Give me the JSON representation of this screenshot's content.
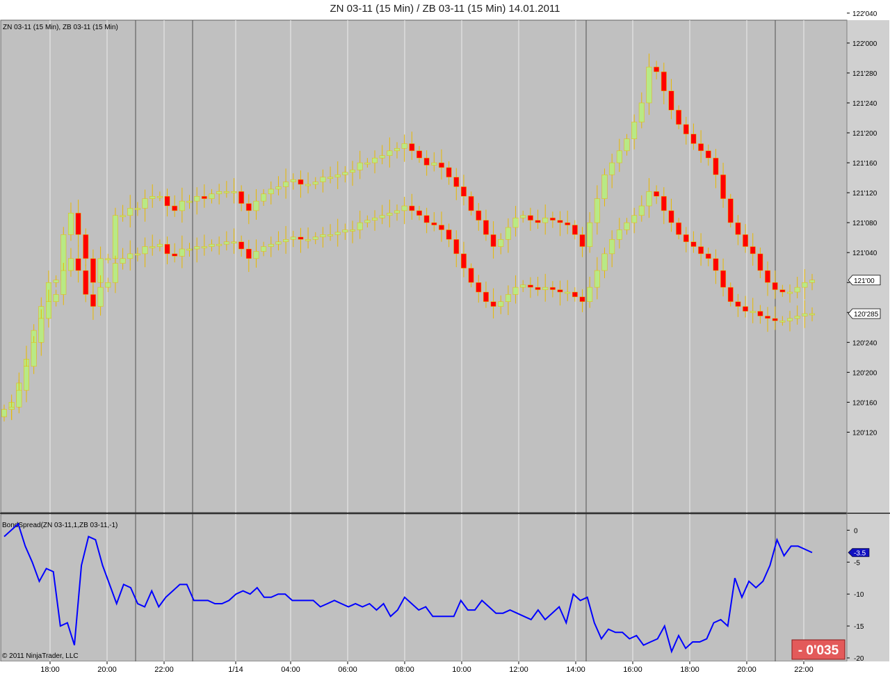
{
  "window_title": "ZN 03-11 (15 Min) / ZB 03-11 (15 Min)  14.01.2011",
  "price_panel_label": "ZN 03-11 (15 Min), ZB 03-11 (15 Min)",
  "indicator_panel_label": "BondSpread(ZN 03-11,1,ZB 03-11,-1)",
  "copyright": "© 2011 NinjaTrader, LLC",
  "spread_box": "- 0'035",
  "colors": {
    "background": "#c0c0c0",
    "up": "#b8e986",
    "down": "#ff0000",
    "wick": "#e8b800",
    "spread_line": "#0000ff",
    "spread_box": "#e35a5a"
  },
  "chart_data": [
    {
      "type": "candlestick",
      "title": "ZN 03-11 (15 Min), ZB 03-11 (15 Min)",
      "ylim": [
        120.08,
        122.02
      ],
      "y_ticks": [
        "122'040",
        "122'000",
        "121'280",
        "121'240",
        "121'200",
        "121'160",
        "121'120",
        "121'080",
        "121'040",
        "121'000",
        "120'280",
        "120'240",
        "120'200",
        "120'160",
        "120'120"
      ],
      "y_tick_values": [
        122.125,
        122.0,
        121.875,
        121.75,
        121.625,
        121.5,
        121.375,
        121.25,
        121.125,
        121.0,
        120.875,
        120.75,
        120.625,
        120.5,
        120.375
      ],
      "last_price_labels": [
        "121'00",
        "120'285"
      ],
      "x_ticks": [
        "18:00",
        "20:00",
        "22:00",
        "1/14",
        "04:00",
        "06:00",
        "08:00",
        "10:00",
        "12:00",
        "14:00",
        "16:00",
        "18:00",
        "20:00",
        "22:00"
      ],
      "series": [
        {
          "name": "ZN 03-11 (15 Min)",
          "close": [
            120.47,
            120.5,
            120.58,
            120.68,
            120.8,
            120.9,
            121.0,
            121.01,
            121.2,
            121.29,
            121.2,
            121.1,
            121.0,
            121.1,
            121.1,
            121.28,
            121.28,
            121.31,
            121.31,
            121.35,
            121.36,
            121.36,
            121.32,
            121.3,
            121.34,
            121.34,
            121.36,
            121.35,
            121.37,
            121.38,
            121.38,
            121.38,
            121.33,
            121.3,
            121.34,
            121.37,
            121.39,
            121.4,
            121.42,
            121.43,
            121.41,
            121.41,
            121.42,
            121.44,
            121.44,
            121.45,
            121.46,
            121.47,
            121.5,
            121.5,
            121.52,
            121.53,
            121.55,
            121.56,
            121.58,
            121.55,
            121.52,
            121.49,
            121.5,
            121.48,
            121.44,
            121.4,
            121.36,
            121.3,
            121.26,
            121.2,
            121.15,
            121.18,
            121.23,
            121.27,
            121.28,
            121.26,
            121.25,
            121.27,
            121.26,
            121.25,
            121.24,
            121.2,
            121.15,
            121.25,
            121.35,
            121.45,
            121.5,
            121.55,
            121.6,
            121.67,
            121.75,
            121.9,
            121.88,
            121.8,
            121.72,
            121.66,
            121.62,
            121.58,
            121.55,
            121.52,
            121.45,
            121.35,
            121.25,
            121.2,
            121.15,
            121.12,
            121.05,
            121.0,
            120.97,
            120.96,
            120.96,
            120.98,
            121.0,
            121.01
          ]
        },
        {
          "name": "ZB 03-11 (15 Min)",
          "close": [
            120.47,
            120.48,
            120.55,
            120.65,
            120.75,
            120.85,
            120.92,
            120.95,
            121.05,
            121.1,
            121.05,
            120.95,
            120.9,
            120.98,
            121.0,
            121.08,
            121.1,
            121.12,
            121.12,
            121.15,
            121.15,
            121.16,
            121.12,
            121.11,
            121.14,
            121.14,
            121.15,
            121.15,
            121.16,
            121.16,
            121.17,
            121.17,
            121.14,
            121.1,
            121.13,
            121.15,
            121.16,
            121.17,
            121.18,
            121.19,
            121.18,
            121.18,
            121.19,
            121.2,
            121.2,
            121.21,
            121.22,
            121.22,
            121.25,
            121.26,
            121.27,
            121.28,
            121.29,
            121.3,
            121.32,
            121.3,
            121.28,
            121.25,
            121.24,
            121.22,
            121.18,
            121.12,
            121.06,
            121.0,
            120.96,
            120.92,
            120.9,
            120.92,
            120.95,
            120.98,
            120.99,
            120.98,
            120.97,
            120.98,
            120.97,
            120.96,
            120.96,
            120.94,
            120.92,
            120.98,
            121.05,
            121.12,
            121.18,
            121.22,
            121.25,
            121.28,
            121.32,
            121.38,
            121.36,
            121.3,
            121.25,
            121.2,
            121.17,
            121.15,
            121.12,
            121.1,
            121.05,
            120.98,
            120.92,
            120.9,
            120.88,
            120.88,
            120.86,
            120.85,
            120.84,
            120.84,
            120.85,
            120.86,
            120.87,
            120.87
          ]
        }
      ]
    },
    {
      "type": "line",
      "title": "BondSpread(ZN 03-11,1,ZB 03-11,-1)",
      "ylim": [
        -20,
        2
      ],
      "y_ticks": [
        0,
        -5,
        -10,
        -15,
        -20
      ],
      "last_value_label": "-3.5",
      "x_ticks": [
        "18:00",
        "20:00",
        "22:00",
        "1/14",
        "04:00",
        "06:00",
        "08:00",
        "10:00",
        "12:00",
        "14:00",
        "16:00",
        "18:00",
        "20:00",
        "22:00"
      ],
      "series": [
        {
          "name": "BondSpread(ZN 03-11,1,ZB 03-11,-1)",
          "values": [
            -1,
            0,
            1,
            -2.5,
            -5,
            -8,
            -6,
            -6.5,
            -15,
            -14.5,
            -18,
            -5.5,
            -1,
            -1.5,
            -5.5,
            -8.5,
            -11.5,
            -8.5,
            -9,
            -11.5,
            -12,
            -9.5,
            -12,
            -10.5,
            -9.5,
            -8.5,
            -8.5,
            -11,
            -11,
            -11,
            -11.5,
            -11.5,
            -11,
            -10,
            -9.5,
            -10,
            -9,
            -10.5,
            -10.5,
            -10,
            -10,
            -11,
            -11,
            -11,
            -11,
            -12,
            -11.5,
            -11,
            -11.5,
            -12,
            -11.5,
            -12,
            -11.5,
            -12.5,
            -11.5,
            -13.5,
            -12.5,
            -10.5,
            -11.5,
            -12.5,
            -12,
            -13.5,
            -13.5,
            -13.5,
            -13.5,
            -11,
            -12.5,
            -12.5,
            -11,
            -12,
            -13,
            -13,
            -12.5,
            -13,
            -13.5,
            -14,
            -12.5,
            -14,
            -13,
            -12,
            -14.5,
            -10,
            -11,
            -10.5,
            -14.5,
            -17,
            -15.5,
            -16,
            -16,
            -17,
            -16.5,
            -18,
            -17.5,
            -17,
            -15,
            -19,
            -16.5,
            -18.5,
            -17.5,
            -17.5,
            -17,
            -14.5,
            -14,
            -15,
            -7.5,
            -10.5,
            -8,
            -9,
            -8,
            -5.5,
            -1.5,
            -4,
            -2.5,
            -2.5,
            -3,
            -3.5
          ]
        }
      ]
    }
  ]
}
